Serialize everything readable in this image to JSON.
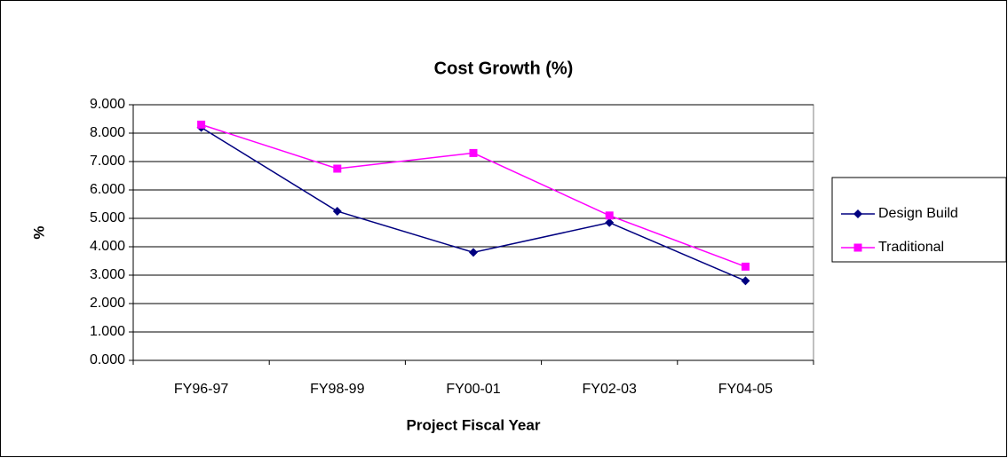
{
  "chart_data": {
    "type": "line",
    "title": "Cost Growth (%)",
    "x_label": "Project Fiscal Year",
    "y_label": "%",
    "categories": [
      "FY96-97",
      "FY98-99",
      "FY00-01",
      "FY02-03",
      "FY04-05"
    ],
    "series": [
      {
        "name": "Design Build",
        "color": "#000080",
        "marker": "diamond",
        "values": [
          8.2,
          5.25,
          3.8,
          4.85,
          2.8
        ]
      },
      {
        "name": "Traditional",
        "color": "#ff00ff",
        "marker": "square",
        "values": [
          8.3,
          6.75,
          7.3,
          5.1,
          3.3
        ]
      }
    ],
    "ylim": [
      0,
      9
    ],
    "yticks": [
      {
        "value": 0,
        "label": "0.000"
      },
      {
        "value": 1,
        "label": "1.000"
      },
      {
        "value": 2,
        "label": "2.000"
      },
      {
        "value": 3,
        "label": "3.000"
      },
      {
        "value": 4,
        "label": "4.000"
      },
      {
        "value": 5,
        "label": "5.000"
      },
      {
        "value": 6,
        "label": "6.000"
      },
      {
        "value": 7,
        "label": "7.000"
      },
      {
        "value": 8,
        "label": "8.000"
      },
      {
        "value": 9,
        "label": "9.000"
      }
    ],
    "grid": true,
    "legend": "right"
  }
}
